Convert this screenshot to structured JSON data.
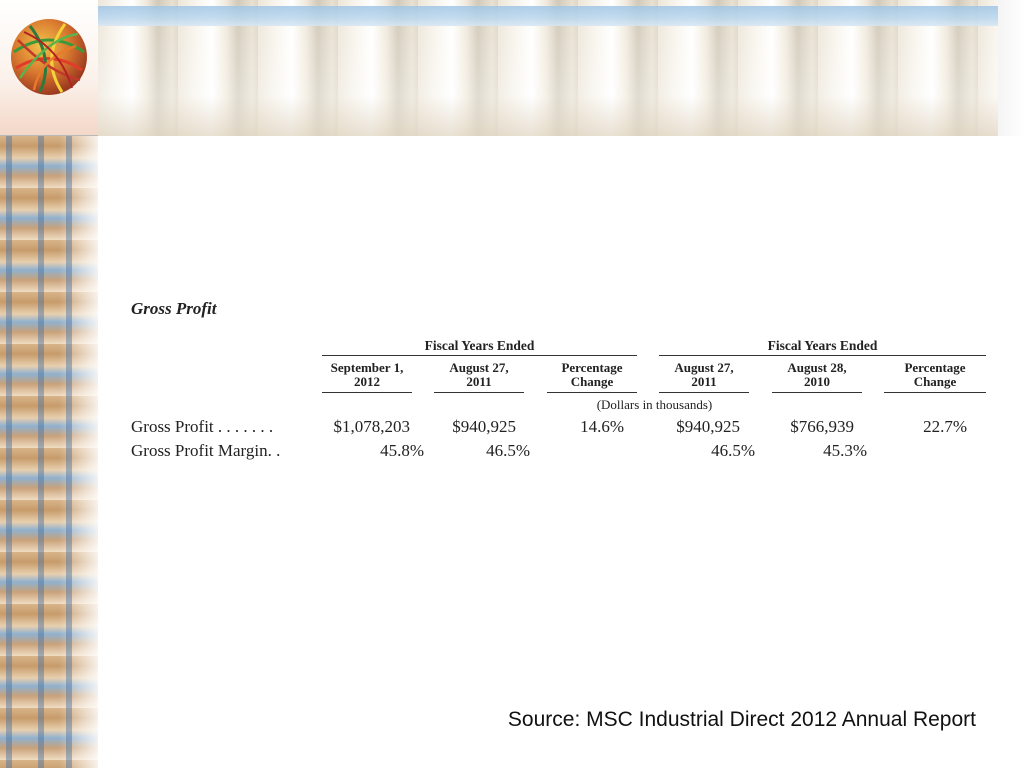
{
  "section_title": "Gross Profit",
  "groups": [
    {
      "label": "Fiscal Years Ended"
    },
    {
      "label": "Fiscal Years Ended"
    }
  ],
  "columns": [
    {
      "line1": "September 1,",
      "line2": "2012"
    },
    {
      "line1": "August 27,",
      "line2": "2011"
    },
    {
      "line1": "Percentage",
      "line2": "Change"
    },
    {
      "line1": "August 27,",
      "line2": "2011"
    },
    {
      "line1": "August 28,",
      "line2": "2010"
    },
    {
      "line1": "Percentage",
      "line2": "Change"
    }
  ],
  "units_note": "(Dollars in thousands)",
  "rows": [
    {
      "label": "Gross Profit . . . . . . .",
      "values": [
        "$1,078,203",
        "$940,925",
        "14.6%",
        "$940,925",
        "$766,939",
        "22.7%"
      ]
    },
    {
      "label": "Gross Profit Margin. .",
      "values": [
        "45.8%",
        "46.5%",
        "",
        "46.5%",
        "45.3%",
        ""
      ]
    }
  ],
  "source": "Source:  MSC Industrial Direct 2012 Annual Report",
  "colors": {
    "rule": "#333333",
    "text": "#222222",
    "header_rail": "#9fc5e6"
  }
}
